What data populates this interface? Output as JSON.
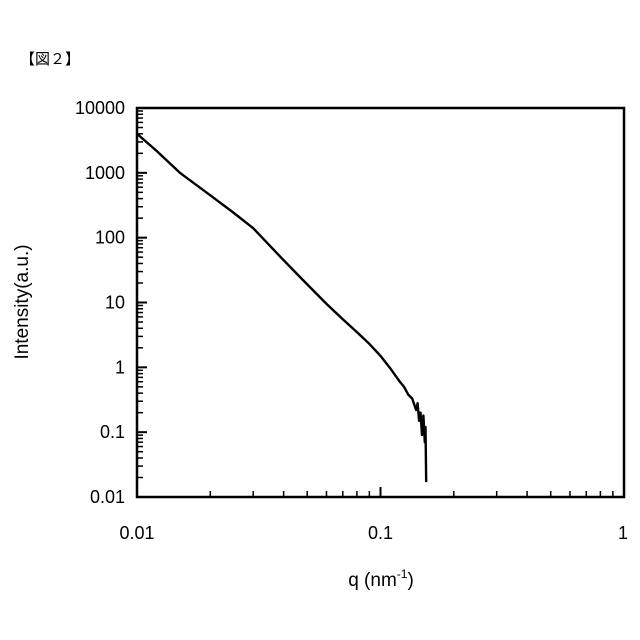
{
  "figure_label": "【図２】",
  "chart_data": {
    "type": "line",
    "title": "",
    "xlabel": "q (nm",
    "xlabel_sup": "-1",
    "xlabel_close": ")",
    "ylabel": "Intensity(a.u.)",
    "x_scale": "log",
    "y_scale": "log",
    "xlim": [
      0.01,
      1
    ],
    "ylim": [
      0.01,
      10000
    ],
    "x_ticks": [
      0.01,
      0.1,
      1
    ],
    "x_tick_labels": [
      "0.01",
      "0.1",
      "1"
    ],
    "y_ticks": [
      0.01,
      0.1,
      1,
      10,
      100,
      1000,
      10000
    ],
    "y_tick_labels": [
      "0.01",
      "0.1",
      "1",
      "10",
      "100",
      "1000",
      "10000"
    ],
    "grid": false,
    "legend": "none",
    "line_color": "#000000",
    "series": [
      {
        "x": [
          0.01,
          0.012,
          0.015,
          0.02,
          0.025,
          0.03,
          0.04,
          0.05,
          0.06,
          0.07,
          0.08,
          0.09,
          0.1,
          0.11,
          0.12,
          0.125,
          0.13,
          0.135,
          0.14,
          0.142,
          0.144,
          0.146,
          0.148,
          0.15,
          0.152,
          0.153,
          0.154
        ],
        "y": [
          4000,
          2200,
          1000,
          450,
          240,
          140,
          45,
          19,
          9.5,
          5.5,
          3.5,
          2.3,
          1.5,
          0.95,
          0.6,
          0.5,
          0.38,
          0.33,
          0.22,
          0.28,
          0.15,
          0.2,
          0.09,
          0.18,
          0.07,
          0.12,
          0.017
        ]
      }
    ]
  }
}
